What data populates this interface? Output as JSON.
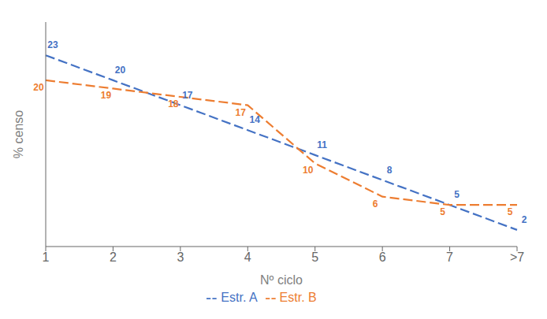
{
  "chart_data": {
    "type": "line",
    "categories": [
      "1",
      "2",
      "3",
      "4",
      "5",
      "6",
      "7",
      ">7"
    ],
    "series": [
      {
        "name": "Estr. A",
        "color": "#4472C4",
        "values": [
          23,
          20,
          17,
          14,
          11,
          8,
          5,
          2
        ],
        "line_style": "dashed"
      },
      {
        "name": "Estr. B",
        "color": "#ED7D31",
        "values": [
          20,
          19,
          18,
          17,
          10,
          6,
          5,
          5
        ],
        "line_style": "dashed"
      }
    ],
    "xlabel": "Nº ciclo",
    "ylabel": "% censo",
    "ylim": [
      0,
      27
    ],
    "tick_labels": "x",
    "grid": false,
    "legend": "bottom",
    "data_labels": true
  }
}
